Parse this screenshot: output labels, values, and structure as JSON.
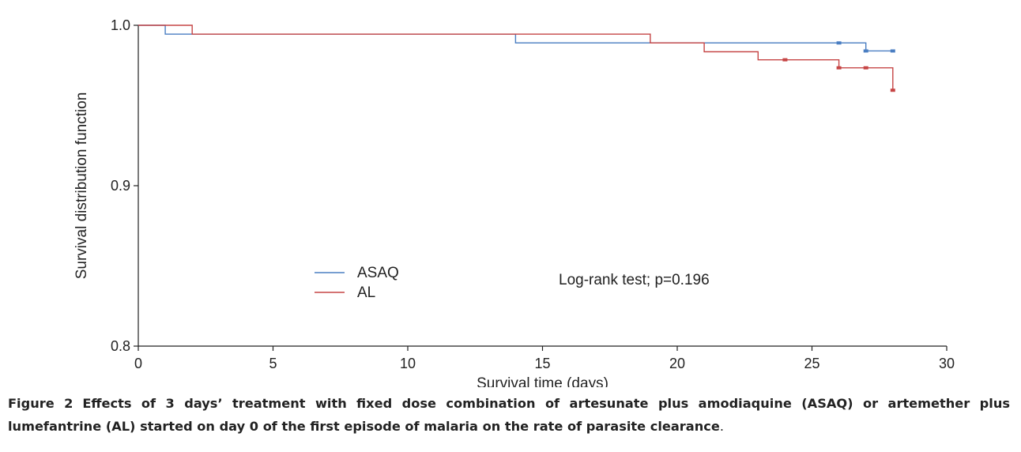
{
  "caption": {
    "label": "Figure 2",
    "text": "Effects of 3 days’ treatment with fixed dose combination of artesunate plus amodiaquine (ASAQ) or artemether plus lumefantrine (AL) started on day 0 of the first episode of malaria on the rate of parasite clearance",
    "end": "."
  },
  "chart_data": {
    "type": "line",
    "subtype": "kaplan-meier step",
    "title": "",
    "xlabel": "Survival time (days)",
    "ylabel": "Survival distribution function",
    "xlim": [
      0,
      30
    ],
    "ylim": [
      0.8,
      1.0
    ],
    "x_ticks": [
      0,
      5,
      10,
      15,
      20,
      25,
      30
    ],
    "y_ticks": [
      0.8,
      0.9,
      1.0
    ],
    "y_tick_labels": [
      "0.8",
      "0.9",
      "1.0"
    ],
    "grid": false,
    "legend_position": "lower-left",
    "annotation": "Log-rank test; p=0.196",
    "series": [
      {
        "name": "ASAQ",
        "color": "#4a7ec2",
        "steps": [
          [
            0,
            1.0
          ],
          [
            1,
            0.9945
          ],
          [
            14,
            0.989
          ],
          [
            27,
            0.984
          ],
          [
            28,
            0.984
          ]
        ],
        "censored": [
          [
            26,
            0.989
          ],
          [
            27,
            0.984
          ],
          [
            28,
            0.984
          ]
        ]
      },
      {
        "name": "AL",
        "color": "#c64545",
        "steps": [
          [
            0,
            1.0
          ],
          [
            2,
            0.9945
          ],
          [
            19,
            0.989
          ],
          [
            21,
            0.9835
          ],
          [
            23,
            0.9785
          ],
          [
            26,
            0.9735
          ],
          [
            28,
            0.9595
          ]
        ],
        "censored": [
          [
            24,
            0.9785
          ],
          [
            26,
            0.9735
          ],
          [
            27,
            0.9735
          ],
          [
            28,
            0.9595
          ]
        ]
      }
    ]
  }
}
